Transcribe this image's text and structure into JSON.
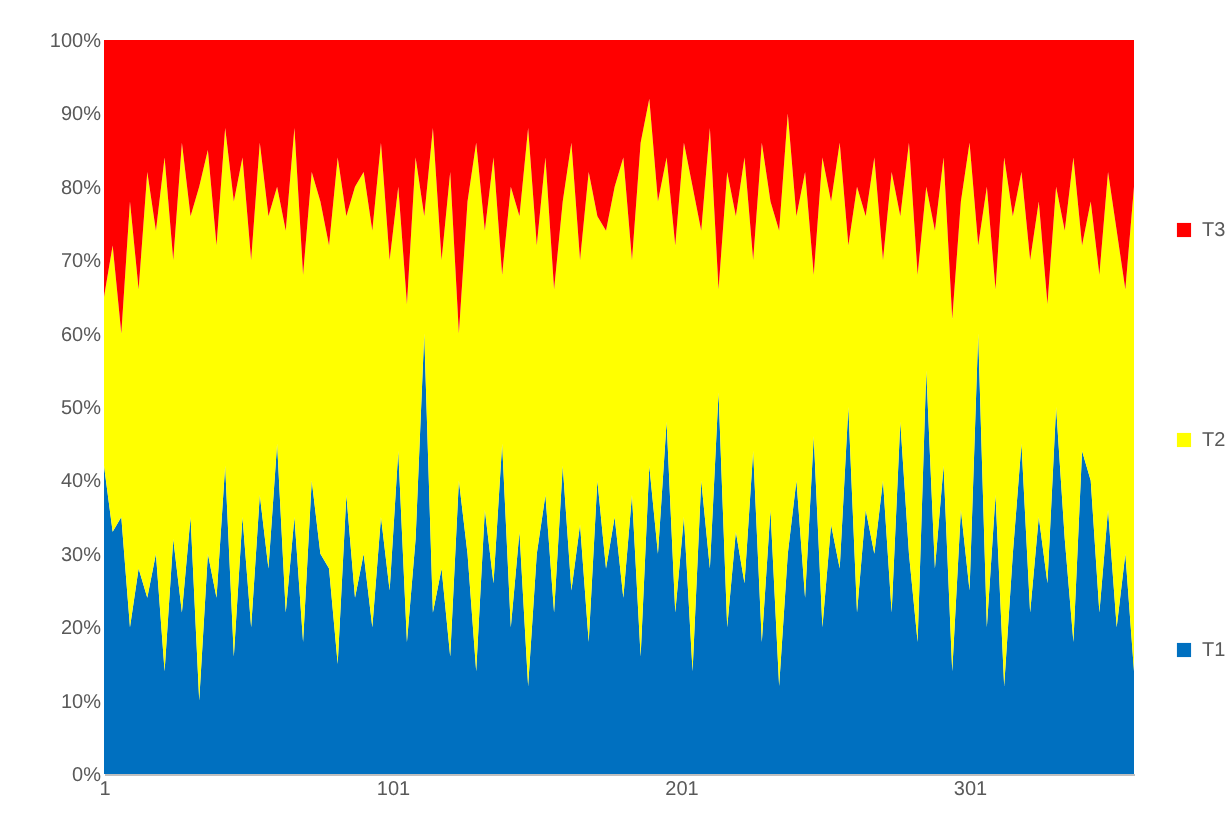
{
  "chart_data": {
    "type": "area",
    "stacked": true,
    "grid": false,
    "legend": "right",
    "x": [
      1,
      4,
      7,
      10,
      13,
      16,
      19,
      22,
      25,
      28,
      31,
      34,
      37,
      40,
      43,
      46,
      49,
      52,
      55,
      58,
      61,
      64,
      67,
      70,
      73,
      76,
      79,
      82,
      85,
      88,
      91,
      94,
      97,
      100,
      103,
      106,
      109,
      112,
      115,
      118,
      121,
      124,
      127,
      130,
      133,
      136,
      139,
      142,
      145,
      148,
      151,
      154,
      157,
      160,
      163,
      166,
      169,
      172,
      175,
      178,
      181,
      184,
      187,
      190,
      193,
      196,
      199,
      202,
      205,
      208,
      211,
      214,
      217,
      220,
      223,
      226,
      229,
      232,
      235,
      238,
      241,
      244,
      247,
      250,
      253,
      256,
      259,
      262,
      265,
      268,
      271,
      274,
      277,
      280,
      283,
      286,
      289,
      292,
      295,
      298,
      301,
      304,
      307,
      310,
      313,
      316,
      319,
      322,
      325,
      328,
      331,
      334,
      337,
      340,
      343,
      346,
      349,
      352,
      355,
      358
    ],
    "xlim": [
      1,
      358
    ],
    "xticks": [
      1,
      101,
      201,
      301
    ],
    "ylim": [
      0,
      100
    ],
    "yticks": [
      {
        "value": 0,
        "label": "0%"
      },
      {
        "value": 10,
        "label": "10%"
      },
      {
        "value": 20,
        "label": "20%"
      },
      {
        "value": 30,
        "label": "30%"
      },
      {
        "value": 40,
        "label": "40%"
      },
      {
        "value": 50,
        "label": "50%"
      },
      {
        "value": 60,
        "label": "60%"
      },
      {
        "value": 70,
        "label": "70%"
      },
      {
        "value": 80,
        "label": "80%"
      },
      {
        "value": 90,
        "label": "90%"
      },
      {
        "value": 100,
        "label": "100%"
      }
    ],
    "series": [
      {
        "name": "T1",
        "color": "#0070c0",
        "values": [
          42,
          33,
          35,
          20,
          28,
          24,
          30,
          14,
          32,
          22,
          35,
          10,
          30,
          24,
          42,
          16,
          35,
          20,
          38,
          28,
          45,
          22,
          35,
          18,
          40,
          30,
          28,
          15,
          38,
          24,
          30,
          20,
          35,
          25,
          44,
          18,
          32,
          60,
          22,
          28,
          16,
          40,
          30,
          14,
          36,
          26,
          45,
          20,
          33,
          12,
          30,
          38,
          22,
          42,
          25,
          34,
          18,
          40,
          28,
          35,
          24,
          38,
          16,
          42,
          30,
          48,
          22,
          35,
          14,
          40,
          28,
          52,
          20,
          33,
          26,
          44,
          18,
          36,
          12,
          30,
          40,
          24,
          46,
          20,
          34,
          28,
          50,
          22,
          36,
          30,
          40,
          22,
          48,
          30,
          18,
          55,
          28,
          42,
          14,
          36,
          25,
          60,
          20,
          38,
          12,
          30,
          45,
          22,
          35,
          26,
          50,
          32,
          18,
          44,
          40,
          22,
          36,
          20,
          30,
          14
        ]
      },
      {
        "name": "T2",
        "color": "#ffff00",
        "values": [
          23,
          39,
          25,
          58,
          38,
          58,
          44,
          70,
          38,
          64,
          41,
          70,
          55,
          48,
          46,
          62,
          49,
          50,
          48,
          48,
          35,
          52,
          53,
          50,
          42,
          48,
          44,
          69,
          38,
          56,
          52,
          54,
          51,
          45,
          36,
          46,
          52,
          16,
          66,
          42,
          66,
          20,
          48,
          72,
          38,
          58,
          23,
          60,
          43,
          76,
          42,
          46,
          44,
          36,
          61,
          36,
          64,
          36,
          46,
          45,
          60,
          32,
          70,
          50,
          48,
          36,
          50,
          51,
          66,
          34,
          60,
          14,
          62,
          43,
          58,
          26,
          68,
          42,
          62,
          60,
          36,
          58,
          22,
          64,
          44,
          58,
          22,
          58,
          40,
          54,
          30,
          60,
          28,
          56,
          50,
          25,
          46,
          42,
          48,
          42,
          61,
          12,
          60,
          28,
          72,
          46,
          37,
          48,
          43,
          38,
          30,
          42,
          66,
          28,
          38,
          46,
          46,
          54,
          36,
          66
        ]
      },
      {
        "name": "T3",
        "color": "#ff0000",
        "values": [
          35,
          28,
          40,
          22,
          34,
          18,
          26,
          16,
          30,
          14,
          24,
          20,
          15,
          28,
          12,
          22,
          16,
          30,
          14,
          24,
          20,
          26,
          12,
          32,
          18,
          22,
          28,
          16,
          24,
          20,
          18,
          26,
          14,
          30,
          20,
          36,
          16,
          24,
          12,
          30,
          18,
          40,
          22,
          14,
          26,
          16,
          32,
          20,
          24,
          12,
          28,
          16,
          34,
          22,
          14,
          30,
          18,
          24,
          26,
          20,
          16,
          30,
          14,
          8,
          22,
          16,
          28,
          14,
          20,
          26,
          12,
          34,
          18,
          24,
          16,
          30,
          14,
          22,
          26,
          10,
          24,
          18,
          32,
          16,
          22,
          14,
          28,
          20,
          24,
          16,
          30,
          18,
          24,
          14,
          32,
          20,
          26,
          16,
          38,
          22,
          14,
          28,
          20,
          34,
          16,
          24,
          18,
          30,
          22,
          36,
          20,
          26,
          16,
          28,
          22,
          32,
          18,
          26,
          34,
          20
        ]
      }
    ]
  }
}
